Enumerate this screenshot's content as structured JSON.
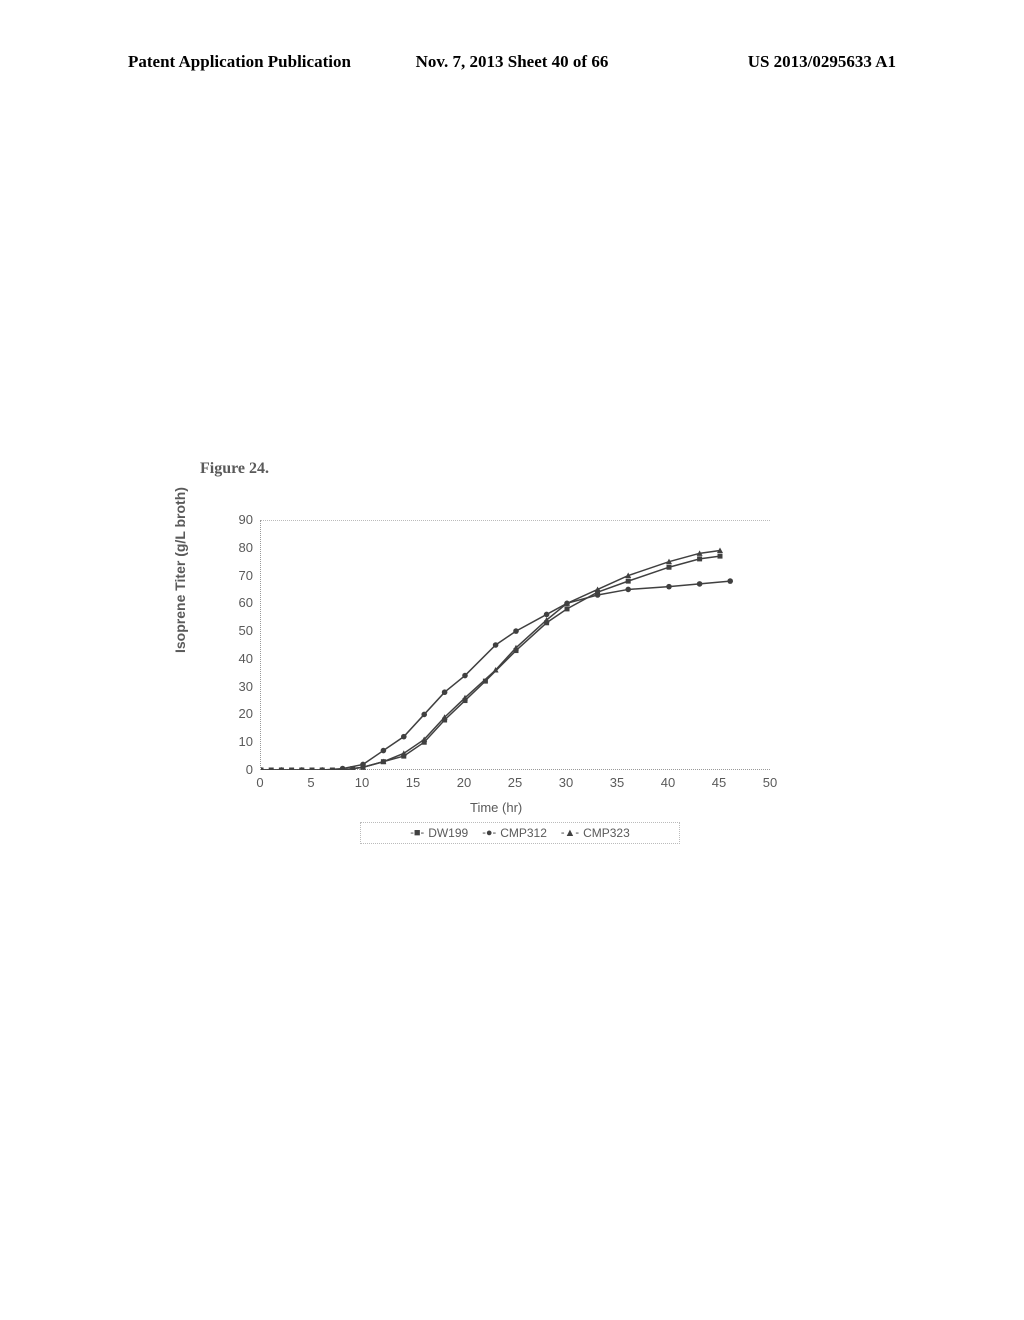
{
  "header": {
    "left": "Patent Application Publication",
    "center": "Nov. 7, 2013  Sheet 40 of 66",
    "right": "US 2013/0295633 A1"
  },
  "figure": {
    "label": "Figure 24."
  },
  "chart": {
    "type": "line",
    "y_axis_label": "Isoprene Titer (g/L broth)",
    "x_axis_label": "Time (hr)",
    "ylim": [
      0,
      90
    ],
    "xlim": [
      0,
      50
    ],
    "ytick_step": 10,
    "xtick_step": 5,
    "y_ticks": [
      "0",
      "10",
      "20",
      "30",
      "40",
      "50",
      "60",
      "70",
      "80",
      "90"
    ],
    "x_ticks": [
      "0",
      "5",
      "10",
      "15",
      "20",
      "25",
      "30",
      "35",
      "40",
      "45",
      "50"
    ],
    "background_color": "#ffffff",
    "line_color": "#404040",
    "marker_color": "#404040",
    "axis_color": "#999999",
    "tick_fontsize": 13,
    "label_fontsize": 14,
    "series": [
      {
        "name": "DW199",
        "marker": "square",
        "legend_symbol": "-■-",
        "data": [
          {
            "x": 0,
            "y": 0
          },
          {
            "x": 1,
            "y": 0
          },
          {
            "x": 2,
            "y": 0
          },
          {
            "x": 3,
            "y": 0
          },
          {
            "x": 4,
            "y": 0
          },
          {
            "x": 5,
            "y": 0
          },
          {
            "x": 6,
            "y": 0
          },
          {
            "x": 7,
            "y": 0
          },
          {
            "x": 8,
            "y": 0
          },
          {
            "x": 9,
            "y": 0.5
          },
          {
            "x": 10,
            "y": 1
          },
          {
            "x": 12,
            "y": 3
          },
          {
            "x": 14,
            "y": 5
          },
          {
            "x": 16,
            "y": 10
          },
          {
            "x": 18,
            "y": 18
          },
          {
            "x": 20,
            "y": 25
          },
          {
            "x": 22,
            "y": 32
          },
          {
            "x": 25,
            "y": 43
          },
          {
            "x": 28,
            "y": 53
          },
          {
            "x": 30,
            "y": 58
          },
          {
            "x": 33,
            "y": 64
          },
          {
            "x": 36,
            "y": 68
          },
          {
            "x": 40,
            "y": 73
          },
          {
            "x": 43,
            "y": 76
          },
          {
            "x": 45,
            "y": 77
          }
        ]
      },
      {
        "name": "CMP312",
        "marker": "circle",
        "legend_symbol": "-●-",
        "data": [
          {
            "x": 0,
            "y": 0
          },
          {
            "x": 2,
            "y": 0
          },
          {
            "x": 4,
            "y": 0
          },
          {
            "x": 6,
            "y": 0
          },
          {
            "x": 8,
            "y": 0.5
          },
          {
            "x": 10,
            "y": 2
          },
          {
            "x": 12,
            "y": 7
          },
          {
            "x": 14,
            "y": 12
          },
          {
            "x": 16,
            "y": 20
          },
          {
            "x": 18,
            "y": 28
          },
          {
            "x": 20,
            "y": 34
          },
          {
            "x": 23,
            "y": 45
          },
          {
            "x": 25,
            "y": 50
          },
          {
            "x": 28,
            "y": 56
          },
          {
            "x": 30,
            "y": 60
          },
          {
            "x": 33,
            "y": 63
          },
          {
            "x": 36,
            "y": 65
          },
          {
            "x": 40,
            "y": 66
          },
          {
            "x": 43,
            "y": 67
          },
          {
            "x": 46,
            "y": 68
          }
        ]
      },
      {
        "name": "CMP323",
        "marker": "triangle",
        "legend_symbol": "-▲-",
        "data": [
          {
            "x": 0,
            "y": 0
          },
          {
            "x": 2,
            "y": 0
          },
          {
            "x": 4,
            "y": 0
          },
          {
            "x": 6,
            "y": 0
          },
          {
            "x": 8,
            "y": 0
          },
          {
            "x": 10,
            "y": 1
          },
          {
            "x": 12,
            "y": 3
          },
          {
            "x": 14,
            "y": 6
          },
          {
            "x": 16,
            "y": 11
          },
          {
            "x": 18,
            "y": 19
          },
          {
            "x": 20,
            "y": 26
          },
          {
            "x": 23,
            "y": 36
          },
          {
            "x": 25,
            "y": 44
          },
          {
            "x": 28,
            "y": 54
          },
          {
            "x": 30,
            "y": 60
          },
          {
            "x": 33,
            "y": 65
          },
          {
            "x": 36,
            "y": 70
          },
          {
            "x": 40,
            "y": 75
          },
          {
            "x": 43,
            "y": 78
          },
          {
            "x": 45,
            "y": 79
          }
        ]
      }
    ],
    "legend_items": [
      {
        "symbol": "-■-",
        "label": "DW199"
      },
      {
        "symbol": "-●-",
        "label": "CMP312"
      },
      {
        "symbol": "-▲-",
        "label": "CMP323"
      }
    ]
  }
}
